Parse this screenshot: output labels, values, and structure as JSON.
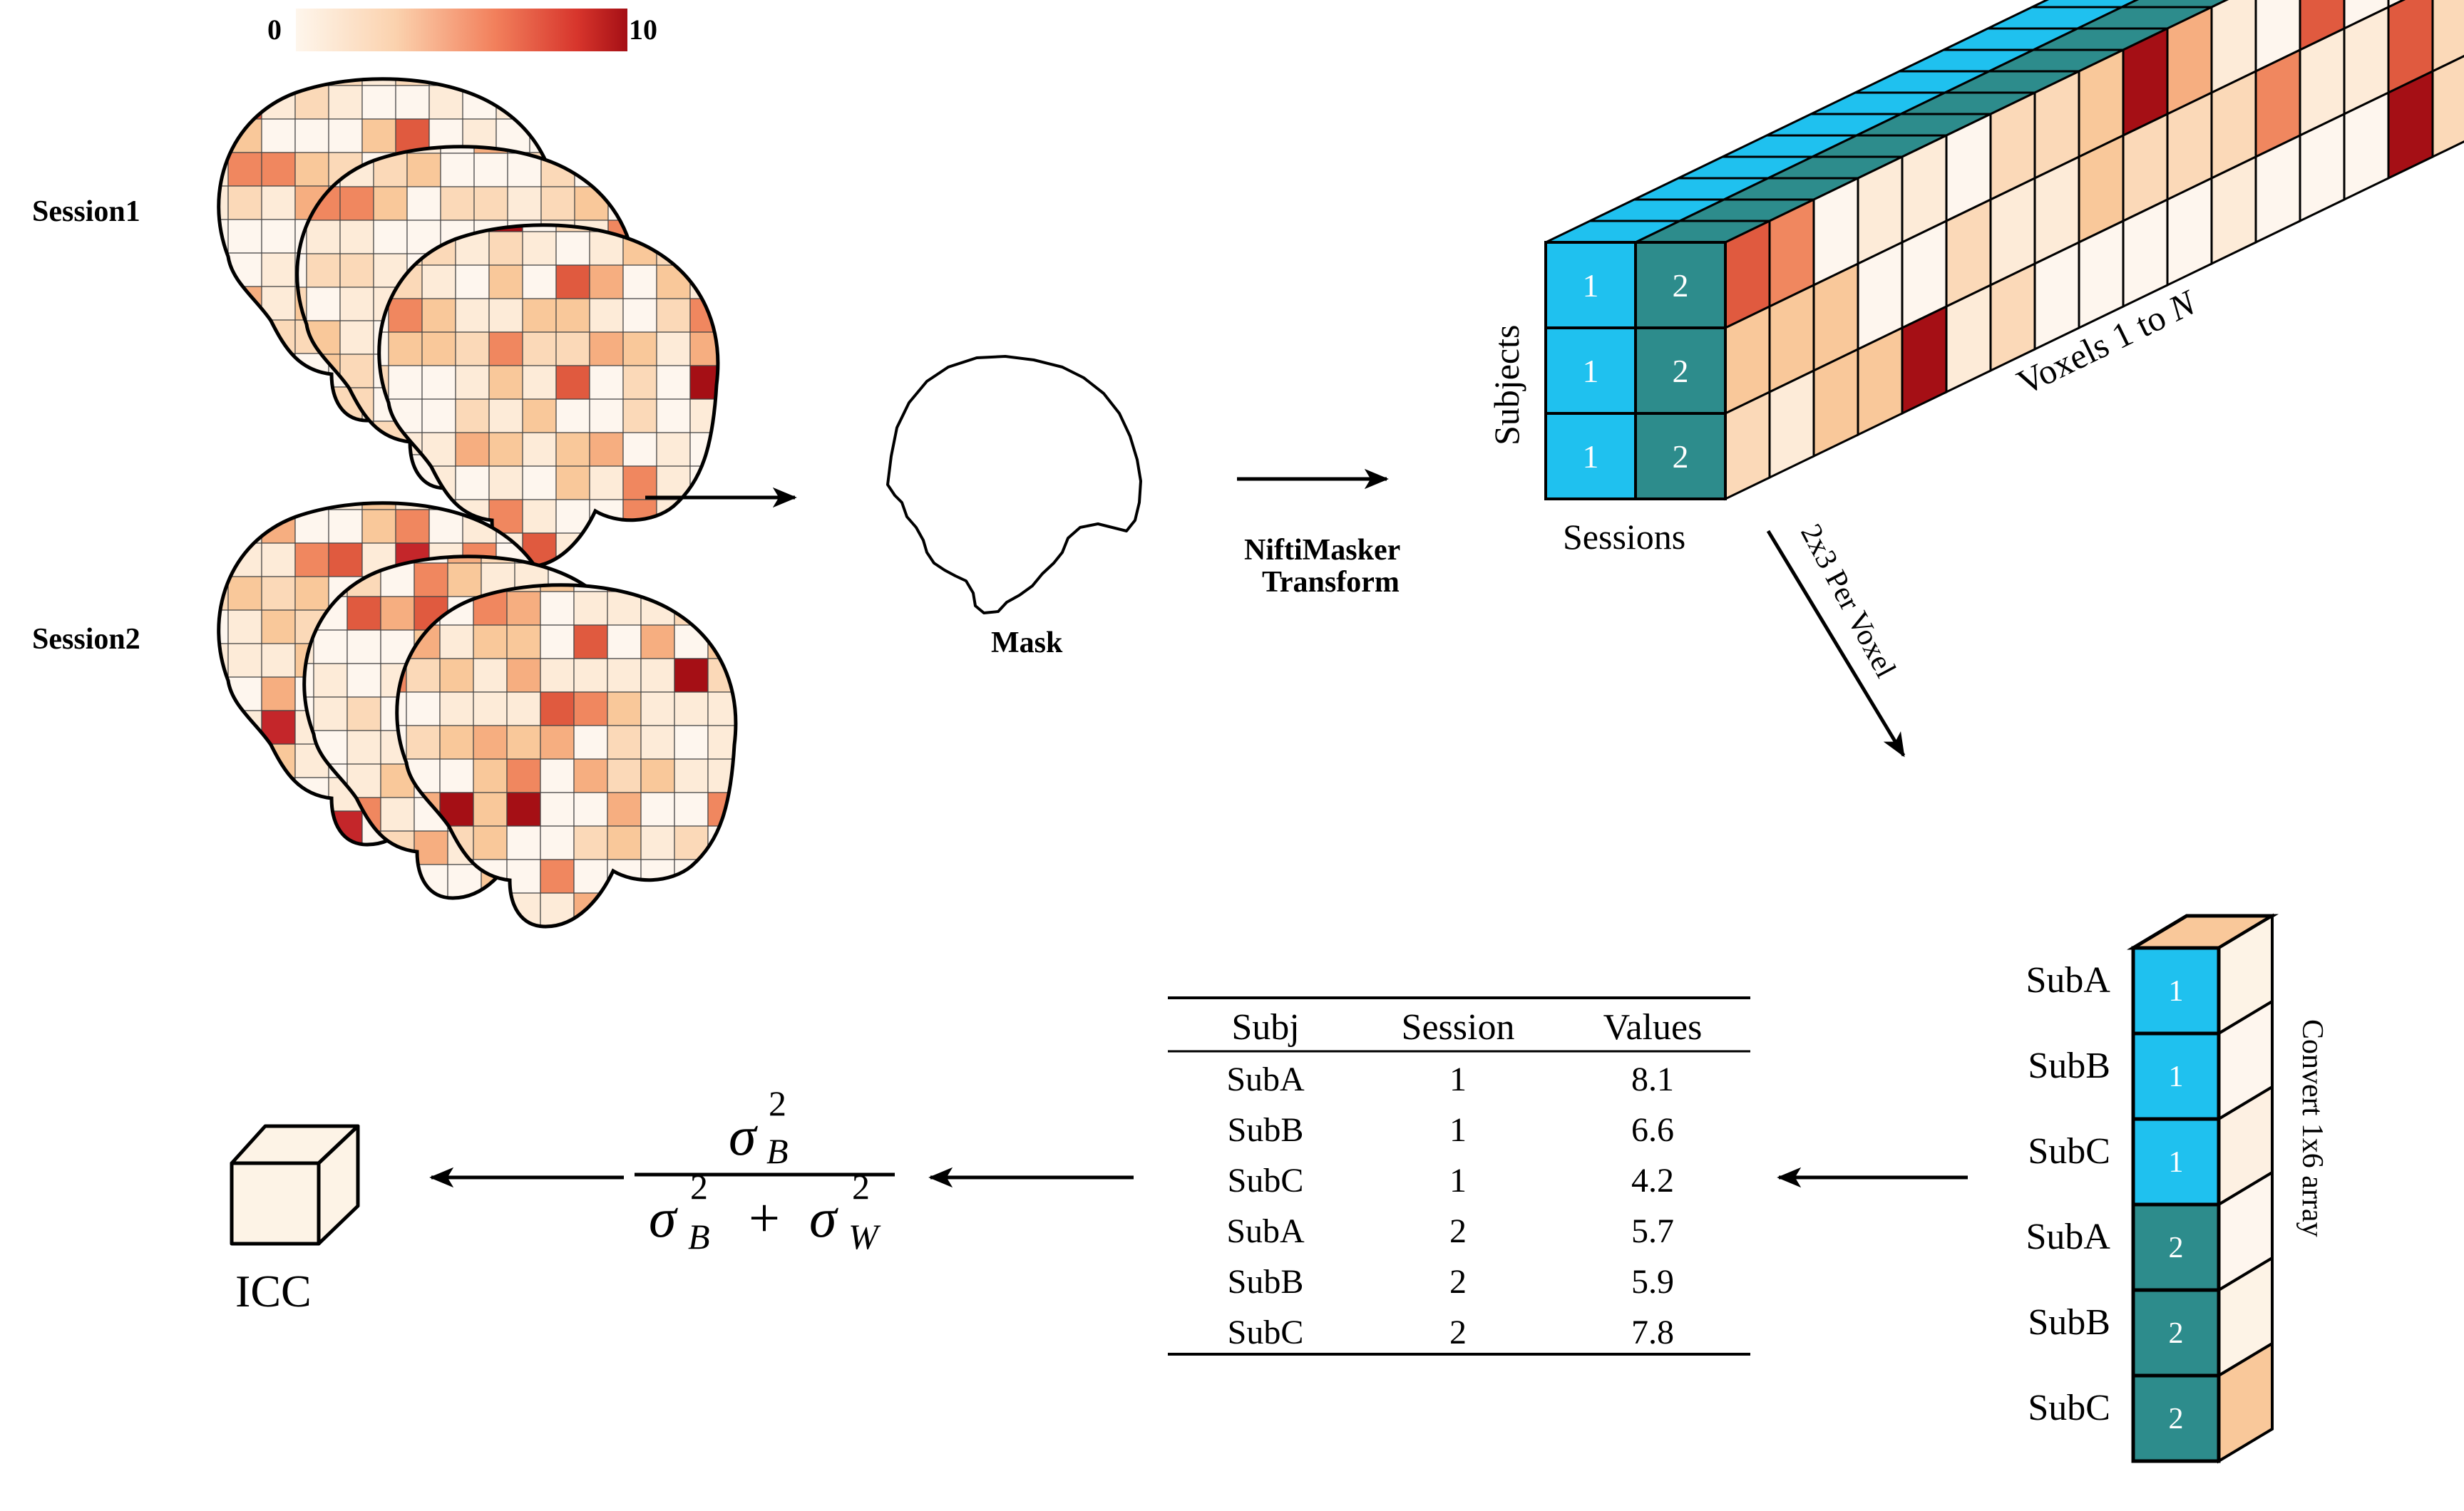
{
  "colorbar": {
    "min_label": "0",
    "max_label": "10"
  },
  "sessions": {
    "session1_label": "Session1",
    "session2_label": "Session2"
  },
  "mask": {
    "label": "Mask"
  },
  "transform": {
    "line1": "NiftiMasker",
    "line2": "Transform"
  },
  "cube": {
    "subjects_label": "Subjects",
    "sessions_label": "Sessions",
    "voxels_label_prefix": "Voxels 1 to ",
    "voxels_label_n": "N",
    "session_numbers": [
      "1",
      "2"
    ]
  },
  "per_voxel_label": "2x3 Per Voxel",
  "array": {
    "convert_label": "Convert 1x6 array",
    "rows": [
      {
        "subject": "SubA",
        "session": "1"
      },
      {
        "subject": "SubB",
        "session": "1"
      },
      {
        "subject": "SubC",
        "session": "1"
      },
      {
        "subject": "SubA",
        "session": "2"
      },
      {
        "subject": "SubB",
        "session": "2"
      },
      {
        "subject": "SubC",
        "session": "2"
      }
    ]
  },
  "table": {
    "headers": [
      "Subj",
      "Session",
      "Values"
    ],
    "rows": [
      [
        "SubA",
        "1",
        "8.1"
      ],
      [
        "SubB",
        "1",
        "6.6"
      ],
      [
        "SubC",
        "1",
        "4.2"
      ],
      [
        "SubA",
        "2",
        "5.7"
      ],
      [
        "SubB",
        "2",
        "5.9"
      ],
      [
        "SubC",
        "2",
        "7.8"
      ]
    ]
  },
  "formula": {
    "numerator": "σ²_B",
    "denominator": "σ²_B + σ²_W"
  },
  "icc": {
    "label": "ICC"
  },
  "colors": {
    "session1_cyan": "#1FC1EF",
    "session2_teal": "#2D8C8C",
    "heat_low": "#FEF4E8",
    "heat_mid": "#F59A6C",
    "heat_high": "#B01217",
    "icc_fill": "#FDF3E6"
  }
}
